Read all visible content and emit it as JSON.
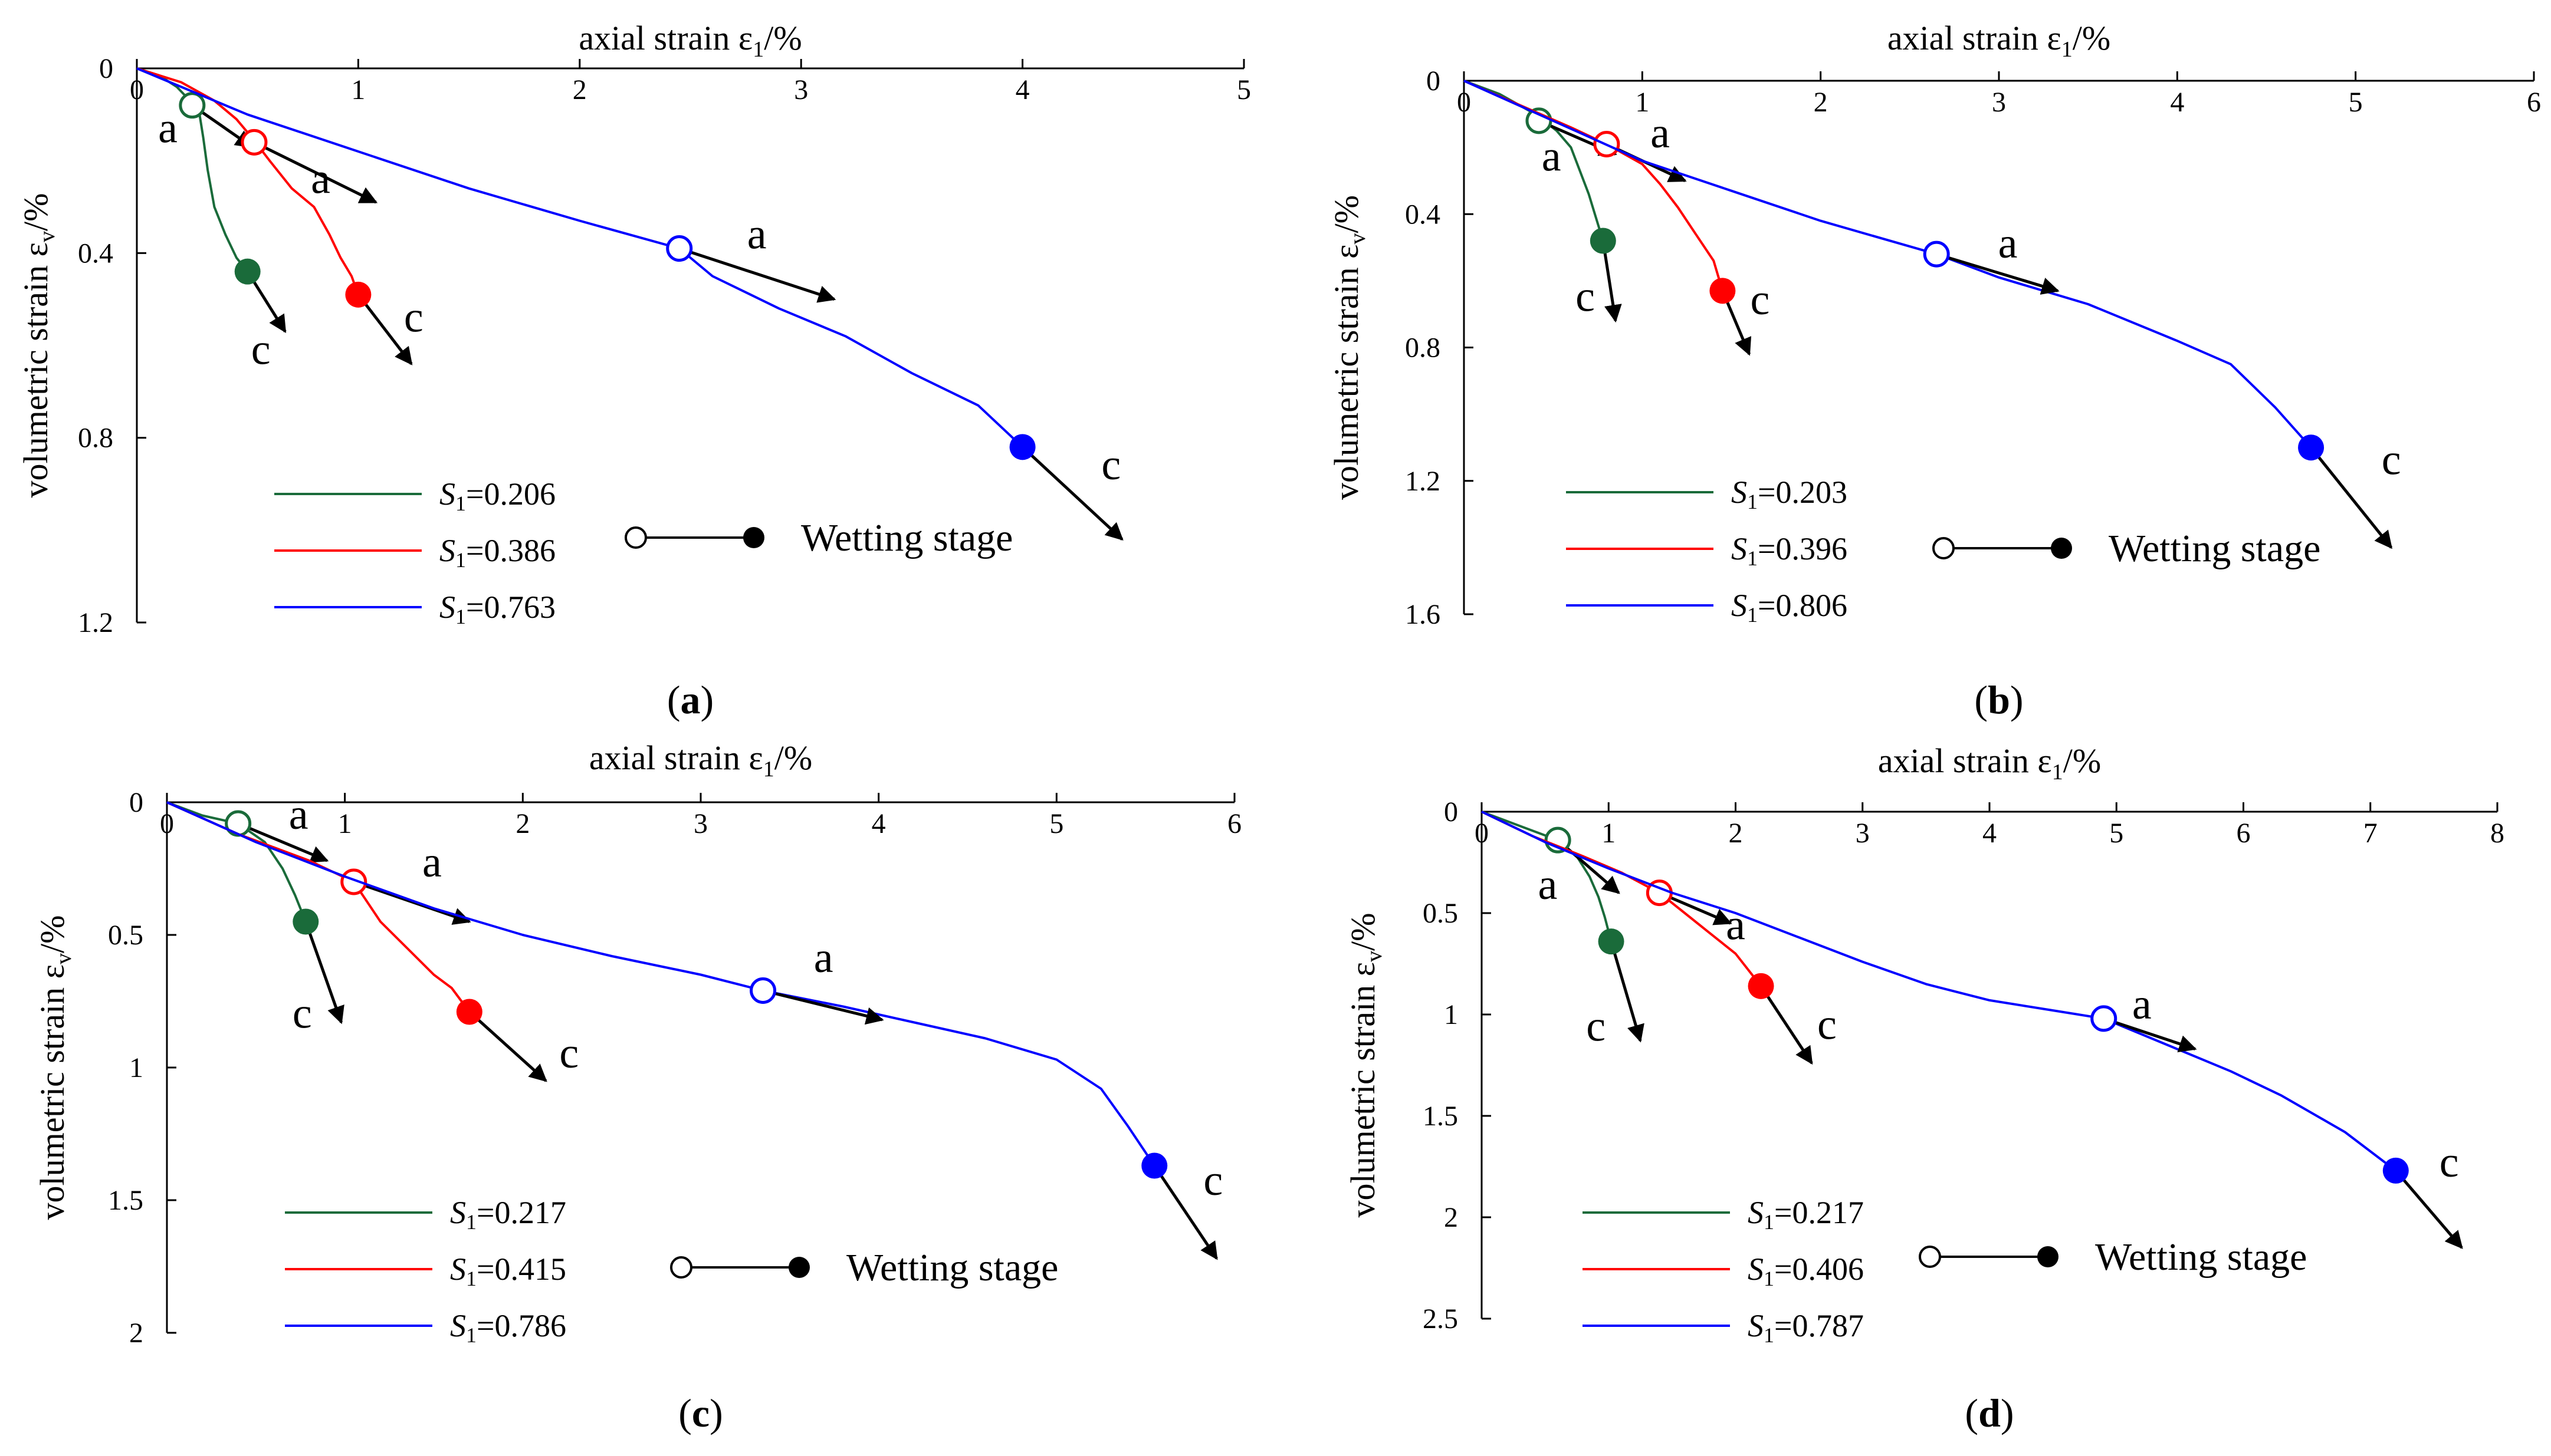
{
  "chart_data": [
    {
      "type": "line",
      "panel_label": "a",
      "title": "",
      "xlabel": "axial strain ε",
      "xlabel_sub": "1",
      "xlabel_unit": "/%",
      "ylabel": "volumetric strain ε",
      "ylabel_sub": "v",
      "ylabel_unit": "/%",
      "xlim": [
        0,
        5
      ],
      "ylim": [
        0,
        1.2
      ],
      "x_ticks": [
        0,
        1,
        2,
        3,
        4,
        5
      ],
      "x_tick_labels": [
        "0",
        "1",
        "2",
        "3",
        "4",
        "5"
      ],
      "y_ticks": [
        0,
        0.4,
        0.8,
        1.2
      ],
      "y_tick_labels": [
        "0",
        "0.4",
        "0.8",
        "1.2"
      ],
      "series": [
        {
          "name": "0.206",
          "color": "#1a6b3a",
          "x": [
            0,
            0.1,
            0.18,
            0.24,
            0.28,
            0.3,
            0.32,
            0.35,
            0.4,
            0.45,
            0.5
          ],
          "y": [
            0,
            0.015,
            0.04,
            0.07,
            0.09,
            0.15,
            0.22,
            0.3,
            0.36,
            0.41,
            0.44
          ],
          "open_point": [
            0.25,
            0.08
          ],
          "filled_point": [
            0.5,
            0.44
          ],
          "arrow_a_to": [
            0.52,
            0.17
          ],
          "arrow_c_to": [
            0.67,
            0.57
          ],
          "label_a_at": [
            0.14,
            0.16
          ],
          "label_c_at": [
            0.56,
            0.64
          ]
        },
        {
          "name": "0.386",
          "color": "#ff0000",
          "x": [
            0,
            0.2,
            0.35,
            0.45,
            0.52,
            0.6,
            0.7,
            0.8,
            0.87,
            0.92,
            0.97,
            1.0
          ],
          "y": [
            0,
            0.03,
            0.07,
            0.11,
            0.15,
            0.2,
            0.26,
            0.3,
            0.36,
            0.41,
            0.45,
            0.49
          ],
          "open_point": [
            0.53,
            0.16
          ],
          "filled_point": [
            1.0,
            0.49
          ],
          "arrow_a_to": [
            1.08,
            0.29
          ],
          "arrow_c_to": [
            1.24,
            0.64
          ],
          "label_a_at": [
            0.83,
            0.27
          ],
          "label_c_at": [
            1.25,
            0.57
          ]
        },
        {
          "name": "0.763",
          "color": "#0000ff",
          "x": [
            0,
            0.5,
            1.0,
            1.5,
            2.0,
            2.45,
            2.6,
            2.9,
            3.2,
            3.5,
            3.8,
            4.0
          ],
          "y": [
            0,
            0.1,
            0.18,
            0.26,
            0.33,
            0.39,
            0.45,
            0.52,
            0.58,
            0.66,
            0.73,
            0.82
          ],
          "open_point": [
            2.45,
            0.39
          ],
          "filled_point": [
            4.0,
            0.82
          ],
          "arrow_a_to": [
            3.15,
            0.5
          ],
          "arrow_c_to": [
            4.45,
            1.02
          ],
          "label_a_at": [
            2.8,
            0.39
          ],
          "label_c_at": [
            4.4,
            0.89
          ]
        }
      ],
      "legend": [
        {
          "symbol": "S",
          "sub": "1",
          "value": "=0.206",
          "color": "#1a6b3a"
        },
        {
          "symbol": "S",
          "sub": "1",
          "value": "=0.386",
          "color": "#ff0000"
        },
        {
          "symbol": "S",
          "sub": "1",
          "value": "=0.763",
          "color": "#0000ff"
        }
      ],
      "wetting_label": "Wetting stage",
      "annotations": {
        "a": "a",
        "c": "c"
      }
    },
    {
      "type": "line",
      "panel_label": "b",
      "title": "",
      "xlabel": "axial strain ε",
      "xlabel_sub": "1",
      "xlabel_unit": "/%",
      "ylabel": "volumetric strain ε",
      "ylabel_sub": "v",
      "ylabel_unit": "/%",
      "xlim": [
        0,
        6
      ],
      "ylim": [
        0,
        1.6
      ],
      "x_ticks": [
        0,
        1,
        2,
        3,
        4,
        5,
        6
      ],
      "x_tick_labels": [
        "0",
        "1",
        "2",
        "3",
        "4",
        "5",
        "6"
      ],
      "y_ticks": [
        0,
        0.4,
        0.8,
        1.2,
        1.6
      ],
      "y_tick_labels": [
        "0",
        "0.4",
        "0.8",
        "1.2",
        "1.6"
      ],
      "series": [
        {
          "name": "0.203",
          "color": "#1a6b3a",
          "x": [
            0,
            0.2,
            0.4,
            0.52,
            0.6,
            0.65,
            0.7,
            0.74,
            0.78
          ],
          "y": [
            0,
            0.04,
            0.1,
            0.15,
            0.2,
            0.27,
            0.34,
            0.41,
            0.48
          ],
          "open_point": [
            0.42,
            0.12
          ],
          "filled_point": [
            0.78,
            0.48
          ],
          "arrow_a_to": [
            0.85,
            0.22
          ],
          "arrow_c_to": [
            0.85,
            0.72
          ],
          "label_a_at": [
            0.49,
            0.27
          ],
          "label_c_at": [
            0.68,
            0.69
          ]
        },
        {
          "name": "0.396",
          "color": "#ff0000",
          "x": [
            0,
            0.3,
            0.6,
            0.8,
            1.0,
            1.1,
            1.2,
            1.3,
            1.4,
            1.45
          ],
          "y": [
            0,
            0.07,
            0.14,
            0.19,
            0.25,
            0.31,
            0.38,
            0.46,
            0.54,
            0.63
          ],
          "open_point": [
            0.8,
            0.19
          ],
          "filled_point": [
            1.45,
            0.63
          ],
          "arrow_a_to": [
            1.24,
            0.3
          ],
          "arrow_c_to": [
            1.6,
            0.82
          ],
          "label_a_at": [
            1.1,
            0.2
          ],
          "label_c_at": [
            1.66,
            0.7
          ]
        },
        {
          "name": "0.806",
          "color": "#0000ff",
          "x": [
            0,
            0.5,
            1.0,
            1.5,
            2.0,
            2.65,
            3.0,
            3.5,
            4.0,
            4.3,
            4.55,
            4.75
          ],
          "y": [
            0,
            0.12,
            0.24,
            0.33,
            0.42,
            0.52,
            0.59,
            0.67,
            0.78,
            0.85,
            0.98,
            1.1
          ],
          "open_point": [
            2.65,
            0.52
          ],
          "filled_point": [
            4.75,
            1.1
          ],
          "arrow_a_to": [
            3.33,
            0.63
          ],
          "arrow_c_to": [
            5.2,
            1.4
          ],
          "label_a_at": [
            3.05,
            0.53
          ],
          "label_c_at": [
            5.2,
            1.18
          ]
        }
      ],
      "legend": [
        {
          "symbol": "S",
          "sub": "1",
          "value": "=0.203",
          "color": "#1a6b3a"
        },
        {
          "symbol": "S",
          "sub": "1",
          "value": "=0.396",
          "color": "#ff0000"
        },
        {
          "symbol": "S",
          "sub": "1",
          "value": "=0.806",
          "color": "#0000ff"
        }
      ],
      "wetting_label": "Wetting stage",
      "annotations": {
        "a": "a",
        "c": "c"
      }
    },
    {
      "type": "line",
      "panel_label": "c",
      "title": "",
      "xlabel": "axial strain ε",
      "xlabel_sub": "1",
      "xlabel_unit": "/%",
      "ylabel": "volumetric strain ε",
      "ylabel_sub": "v",
      "ylabel_unit": "/%",
      "xlim": [
        0,
        6
      ],
      "ylim": [
        0,
        2
      ],
      "x_ticks": [
        0,
        1,
        2,
        3,
        4,
        5,
        6
      ],
      "x_tick_labels": [
        "0",
        "1",
        "2",
        "3",
        "4",
        "5",
        "6"
      ],
      "y_ticks": [
        0,
        0.5,
        1,
        1.5,
        2
      ],
      "y_tick_labels": [
        "0",
        "0.5",
        "1",
        "1.5",
        "2"
      ],
      "series": [
        {
          "name": "0.217",
          "color": "#1a6b3a",
          "x": [
            0,
            0.2,
            0.4,
            0.55,
            0.65,
            0.72,
            0.78
          ],
          "y": [
            0,
            0.05,
            0.08,
            0.15,
            0.25,
            0.35,
            0.45
          ],
          "open_point": [
            0.4,
            0.08
          ],
          "filled_point": [
            0.78,
            0.45
          ],
          "arrow_a_to": [
            0.9,
            0.22
          ],
          "arrow_c_to": [
            0.98,
            0.83
          ],
          "label_a_at": [
            0.74,
            0.1
          ],
          "label_c_at": [
            0.76,
            0.85
          ]
        },
        {
          "name": "0.415",
          "color": "#ff0000",
          "x": [
            0,
            0.4,
            0.8,
            1.05,
            1.2,
            1.35,
            1.5,
            1.6,
            1.7
          ],
          "y": [
            0,
            0.12,
            0.22,
            0.3,
            0.45,
            0.55,
            0.65,
            0.7,
            0.79
          ],
          "open_point": [
            1.05,
            0.3
          ],
          "filled_point": [
            1.7,
            0.79
          ],
          "arrow_a_to": [
            1.7,
            0.45
          ],
          "arrow_c_to": [
            2.13,
            1.05
          ],
          "label_a_at": [
            1.49,
            0.28
          ],
          "label_c_at": [
            2.26,
            1.0
          ]
        },
        {
          "name": "0.786",
          "color": "#0000ff",
          "x": [
            0,
            0.5,
            1.0,
            1.5,
            2.0,
            2.5,
            3.0,
            3.35,
            3.8,
            4.2,
            4.6,
            5.0,
            5.25,
            5.4,
            5.55
          ],
          "y": [
            0,
            0.15,
            0.28,
            0.4,
            0.5,
            0.58,
            0.65,
            0.71,
            0.77,
            0.83,
            0.89,
            0.97,
            1.08,
            1.22,
            1.37
          ],
          "open_point": [
            3.35,
            0.71
          ],
          "filled_point": [
            5.55,
            1.37
          ],
          "arrow_a_to": [
            4.02,
            0.82
          ],
          "arrow_c_to": [
            5.9,
            1.72
          ],
          "label_a_at": [
            3.69,
            0.64
          ],
          "label_c_at": [
            5.88,
            1.48
          ]
        }
      ],
      "legend": [
        {
          "symbol": "S",
          "sub": "1",
          "value": "=0.217",
          "color": "#1a6b3a"
        },
        {
          "symbol": "S",
          "sub": "1",
          "value": "=0.415",
          "color": "#ff0000"
        },
        {
          "symbol": "S",
          "sub": "1",
          "value": "=0.786",
          "color": "#0000ff"
        }
      ],
      "wetting_label": "Wetting stage",
      "annotations": {
        "a": "a",
        "c": "c"
      }
    },
    {
      "type": "line",
      "panel_label": "d",
      "title": "",
      "xlabel": "axial strain ε",
      "xlabel_sub": "1",
      "xlabel_unit": "/%",
      "ylabel": "volumetric strain ε",
      "ylabel_sub": "v",
      "ylabel_unit": "/%",
      "xlim": [
        0,
        8
      ],
      "ylim": [
        0,
        2.5
      ],
      "x_ticks": [
        0,
        1,
        2,
        3,
        4,
        5,
        6,
        7,
        8
      ],
      "x_tick_labels": [
        "0",
        "1",
        "2",
        "3",
        "4",
        "5",
        "6",
        "7",
        "8"
      ],
      "y_ticks": [
        0,
        0.5,
        1,
        1.5,
        2,
        2.5
      ],
      "y_tick_labels": [
        "0",
        "0.5",
        "1",
        "1.5",
        "2",
        "2.5"
      ],
      "series": [
        {
          "name": "0.217",
          "color": "#1a6b3a",
          "x": [
            0,
            0.3,
            0.6,
            0.75,
            0.85,
            0.92,
            0.97,
            1.02
          ],
          "y": [
            0,
            0.07,
            0.14,
            0.22,
            0.32,
            0.42,
            0.52,
            0.64
          ],
          "open_point": [
            0.6,
            0.14
          ],
          "filled_point": [
            1.02,
            0.64
          ],
          "arrow_a_to": [
            1.08,
            0.4
          ],
          "arrow_c_to": [
            1.25,
            1.13
          ],
          "label_a_at": [
            0.52,
            0.43
          ],
          "label_c_at": [
            0.9,
            1.13
          ]
        },
        {
          "name": "0.406",
          "color": "#ff0000",
          "x": [
            0,
            0.4,
            0.8,
            1.1,
            1.4,
            1.6,
            1.8,
            2.0,
            2.2
          ],
          "y": [
            0,
            0.12,
            0.22,
            0.3,
            0.4,
            0.5,
            0.6,
            0.7,
            0.86
          ],
          "open_point": [
            1.4,
            0.4
          ],
          "filled_point": [
            2.2,
            0.86
          ],
          "arrow_a_to": [
            1.96,
            0.55
          ],
          "arrow_c_to": [
            2.6,
            1.24
          ],
          "label_a_at": [
            2.0,
            0.63
          ],
          "label_c_at": [
            2.72,
            1.12
          ]
        },
        {
          "name": "0.787",
          "color": "#0000ff",
          "x": [
            0,
            0.5,
            1.0,
            1.5,
            2.0,
            2.5,
            3.0,
            3.5,
            4.0,
            4.5,
            4.9,
            5.4,
            5.9,
            6.3,
            6.8,
            7.2
          ],
          "y": [
            0,
            0.15,
            0.28,
            0.4,
            0.5,
            0.62,
            0.74,
            0.85,
            0.93,
            0.98,
            1.02,
            1.15,
            1.28,
            1.4,
            1.58,
            1.77
          ],
          "open_point": [
            4.9,
            1.02
          ],
          "filled_point": [
            7.2,
            1.77
          ],
          "arrow_a_to": [
            5.62,
            1.17
          ],
          "arrow_c_to": [
            7.72,
            2.15
          ],
          "label_a_at": [
            5.2,
            1.02
          ],
          "label_c_at": [
            7.62,
            1.8
          ]
        }
      ],
      "legend": [
        {
          "symbol": "S",
          "sub": "1",
          "value": "=0.217",
          "color": "#1a6b3a"
        },
        {
          "symbol": "S",
          "sub": "1",
          "value": "=0.406",
          "color": "#ff0000"
        },
        {
          "symbol": "S",
          "sub": "1",
          "value": "=0.787",
          "color": "#0000ff"
        }
      ],
      "wetting_label": "Wetting stage",
      "annotations": {
        "a": "a",
        "c": "c"
      }
    }
  ]
}
